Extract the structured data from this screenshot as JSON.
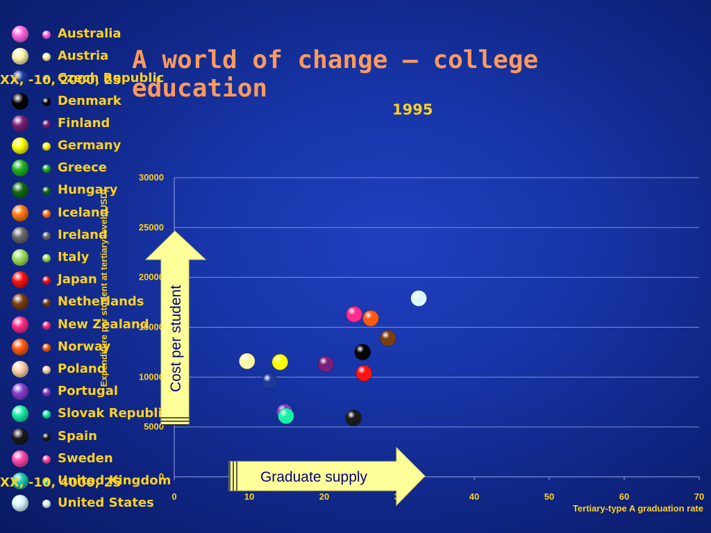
{
  "title": "A world of change – college education",
  "subtitle": "1995",
  "legend": [
    {
      "label": "Australia",
      "color": "#ff66e0"
    },
    {
      "label": "Austria",
      "color": "#fdf6a8"
    },
    {
      "label": "Czech Republic",
      "color": "#1c3a9c"
    },
    {
      "label": "Denmark",
      "color": "#050505"
    },
    {
      "label": "Finland",
      "color": "#7a1f7a"
    },
    {
      "label": "Germany",
      "color": "#ffff00"
    },
    {
      "label": "Greece",
      "color": "#1fb31f"
    },
    {
      "label": "Hungary",
      "color": "#136b13"
    },
    {
      "label": "Iceland",
      "color": "#ff7a12"
    },
    {
      "label": "Ireland",
      "color": "#6b6b6b"
    },
    {
      "label": "Italy",
      "color": "#9fe05a"
    },
    {
      "label": "Japan",
      "color": "#ff1010"
    },
    {
      "label": "Netherlands",
      "color": "#7a3f12"
    },
    {
      "label": "New Zealand",
      "color": "#ff2a8a"
    },
    {
      "label": "Norway",
      "color": "#ff5a10"
    },
    {
      "label": "Poland",
      "color": "#ffd3a8"
    },
    {
      "label": "Portugal",
      "color": "#8a3fd0"
    },
    {
      "label": "Slovak Republic",
      "color": "#18f0a8"
    },
    {
      "label": "Spain",
      "color": "#1a1a1a"
    },
    {
      "label": "Sweden",
      "color": "#ff4aaa"
    },
    {
      "label": "United Kingdom",
      "color": "#18c8b0"
    },
    {
      "label": "United States",
      "color": "#d9f8ff"
    }
  ],
  "stray_labels": [
    "XX, -10, 2000, 25",
    "XX, -10, 4000, 25"
  ],
  "arrows": {
    "cost": "Cost per student",
    "supply": "Graduate supply"
  },
  "chart_data": {
    "type": "scatter",
    "title": "1995",
    "xlabel": "Tertiary-type A graduation rate",
    "ylabel": "Expenditure per student at tertiary level (USD)",
    "xlim": [
      0,
      70
    ],
    "ylim": [
      0,
      30000
    ],
    "xticks": [
      0,
      10,
      20,
      30,
      40,
      50,
      60,
      70
    ],
    "yticks": [
      0,
      5000,
      10000,
      15000,
      20000,
      25000,
      30000
    ],
    "grid": "horizontal",
    "points": [
      {
        "name": "Austria",
        "x": 9.7,
        "y": 11600,
        "color": "#fdf6a8"
      },
      {
        "name": "Czech Republic",
        "x": 12.7,
        "y": 9600,
        "color": "#1c3a9c"
      },
      {
        "name": "Germany",
        "x": 14.1,
        "y": 11500,
        "color": "#ffff00"
      },
      {
        "name": "Portugal",
        "x": 14.7,
        "y": 6500,
        "color": "#8a3fd0"
      },
      {
        "name": "Slovak Republic",
        "x": 14.9,
        "y": 6100,
        "color": "#18f0a8"
      },
      {
        "name": "Finland",
        "x": 20.2,
        "y": 11300,
        "color": "#7a1f7a"
      },
      {
        "name": "Spain",
        "x": 23.9,
        "y": 5900,
        "color": "#1a1a1a"
      },
      {
        "name": "New Zealand",
        "x": 24.0,
        "y": 16300,
        "color": "#ff2a8a"
      },
      {
        "name": "Denmark",
        "x": 25.1,
        "y": 12500,
        "color": "#050505"
      },
      {
        "name": "Japan",
        "x": 25.3,
        "y": 10400,
        "color": "#ff1010"
      },
      {
        "name": "Norway",
        "x": 26.2,
        "y": 15900,
        "color": "#ff5a10"
      },
      {
        "name": "Netherlands",
        "x": 28.5,
        "y": 13900,
        "color": "#7a3f12"
      },
      {
        "name": "United States",
        "x": 32.6,
        "y": 17900,
        "color": "#d9f8ff"
      }
    ]
  }
}
